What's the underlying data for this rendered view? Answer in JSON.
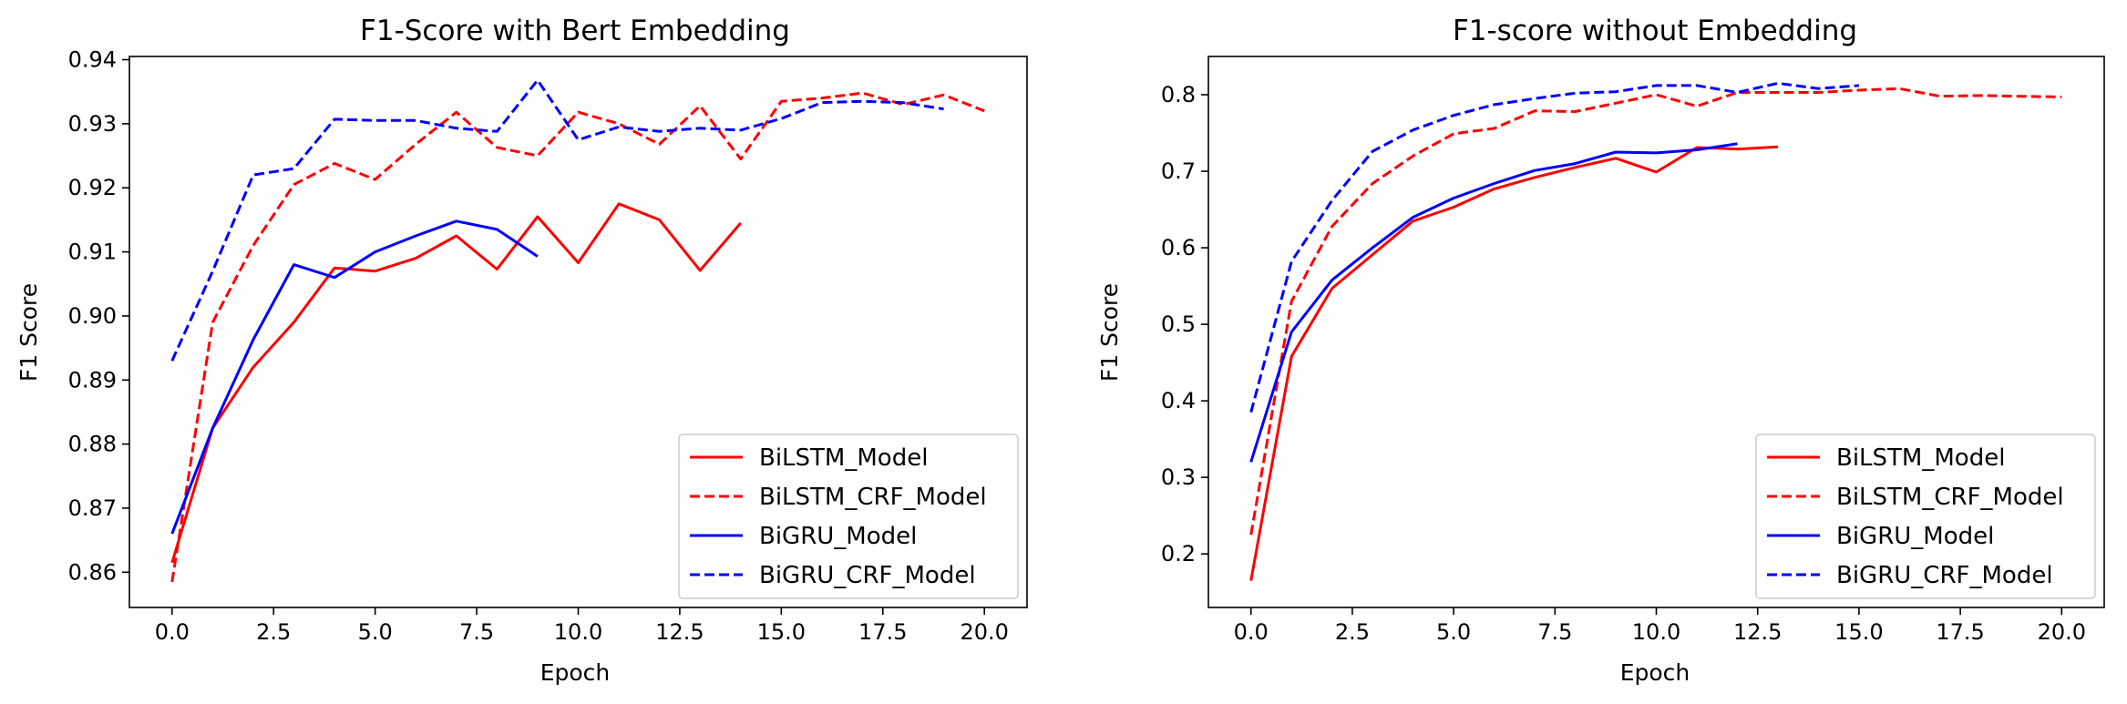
{
  "colors": {
    "red": "#ff0000",
    "blue": "#0000ff",
    "axis": "#000000",
    "legend_border": "#cccccc"
  },
  "chart_data": [
    {
      "type": "line",
      "title": "F1-Score with Bert Embedding",
      "xlabel": "Epoch",
      "ylabel": "F1 Score",
      "xlim": [
        -1.05,
        21.05
      ],
      "ylim": [
        0.8545,
        0.9405
      ],
      "xticks": [
        0,
        2.5,
        5,
        7.5,
        10,
        12.5,
        15,
        17.5,
        20
      ],
      "xtick_labels": [
        "0.0",
        "2.5",
        "5.0",
        "7.5",
        "10.0",
        "12.5",
        "15.0",
        "17.5",
        "20.0"
      ],
      "yticks": [
        0.86,
        0.87,
        0.88,
        0.89,
        0.9,
        0.91,
        0.92,
        0.93,
        0.94
      ],
      "ytick_labels": [
        "0.86",
        "0.87",
        "0.88",
        "0.89",
        "0.90",
        "0.91",
        "0.92",
        "0.93",
        "0.94"
      ],
      "grid": false,
      "legend_position": "lower-right",
      "series": [
        {
          "name": "BiLSTM_Model",
          "color": "#ff0000",
          "dash": "solid",
          "x": [
            0,
            1,
            2,
            3,
            4,
            5,
            6,
            7,
            8,
            9,
            10,
            11,
            12,
            13,
            14
          ],
          "y": [
            0.8615,
            0.8825,
            0.892,
            0.899,
            0.9075,
            0.907,
            0.909,
            0.9125,
            0.9073,
            0.9155,
            0.9083,
            0.9175,
            0.915,
            0.9071,
            0.9145
          ]
        },
        {
          "name": "BiLSTM_CRF_Model",
          "color": "#ff0000",
          "dash": "dashed",
          "x": [
            0,
            1,
            2,
            3,
            4,
            5,
            6,
            7,
            8,
            9,
            10,
            11,
            12,
            13,
            14,
            15,
            16,
            17,
            18,
            19,
            20
          ],
          "y": [
            0.8585,
            0.899,
            0.911,
            0.9205,
            0.9238,
            0.9213,
            0.9268,
            0.9318,
            0.9263,
            0.925,
            0.9318,
            0.93,
            0.9268,
            0.9328,
            0.9245,
            0.9335,
            0.934,
            0.9348,
            0.933,
            0.9345,
            0.932
          ]
        },
        {
          "name": "BiGRU_Model",
          "color": "#0000ff",
          "dash": "solid",
          "x": [
            0,
            1,
            2,
            3,
            4,
            5,
            6,
            7,
            8,
            9
          ],
          "y": [
            0.866,
            0.8825,
            0.8963,
            0.908,
            0.906,
            0.91,
            0.9125,
            0.9148,
            0.9135,
            0.9093
          ]
        },
        {
          "name": "BiGRU_CRF_Model",
          "color": "#0000ff",
          "dash": "dashed",
          "x": [
            0,
            1,
            2,
            3,
            4,
            5,
            6,
            7,
            8,
            9,
            10,
            11,
            12,
            13,
            14,
            15,
            16,
            17,
            18,
            19
          ],
          "y": [
            0.893,
            0.907,
            0.922,
            0.923,
            0.9307,
            0.9305,
            0.9305,
            0.9293,
            0.9288,
            0.9368,
            0.9275,
            0.9295,
            0.9288,
            0.9293,
            0.929,
            0.9308,
            0.9333,
            0.9335,
            0.9333,
            0.9323
          ]
        }
      ]
    },
    {
      "type": "line",
      "title": "F1-score without Embedding",
      "xlabel": "Epoch",
      "ylabel": "F1 Score",
      "xlim": [
        -1.05,
        21.05
      ],
      "ylim": [
        0.13,
        0.85
      ],
      "xticks": [
        0,
        2.5,
        5,
        7.5,
        10,
        12.5,
        15,
        17.5,
        20
      ],
      "xtick_labels": [
        "0.0",
        "2.5",
        "5.0",
        "7.5",
        "10.0",
        "12.5",
        "15.0",
        "17.5",
        "20.0"
      ],
      "yticks": [
        0.2,
        0.3,
        0.4,
        0.5,
        0.6,
        0.7,
        0.8
      ],
      "ytick_labels": [
        "0.2",
        "0.3",
        "0.4",
        "0.5",
        "0.6",
        "0.7",
        "0.8"
      ],
      "grid": false,
      "legend_position": "lower-right",
      "series": [
        {
          "name": "BiLSTM_Model",
          "color": "#ff0000",
          "dash": "solid",
          "x": [
            0,
            1,
            2,
            3,
            4,
            5,
            6,
            7,
            8,
            9,
            10,
            11,
            12,
            13
          ],
          "y": [
            0.165,
            0.458,
            0.547,
            0.591,
            0.635,
            0.653,
            0.677,
            0.692,
            0.705,
            0.717,
            0.699,
            0.731,
            0.729,
            0.732
          ]
        },
        {
          "name": "BiLSTM_CRF_Model",
          "color": "#ff0000",
          "dash": "dashed",
          "x": [
            0,
            1,
            2,
            3,
            4,
            5,
            6,
            7,
            8,
            9,
            10,
            11,
            12,
            13,
            14,
            15,
            16,
            17,
            18,
            19,
            20
          ],
          "y": [
            0.225,
            0.53,
            0.628,
            0.684,
            0.72,
            0.749,
            0.756,
            0.779,
            0.778,
            0.789,
            0.8,
            0.785,
            0.803,
            0.803,
            0.803,
            0.806,
            0.808,
            0.798,
            0.799,
            0.798,
            0.797
          ]
        },
        {
          "name": "BiGRU_Model",
          "color": "#0000ff",
          "dash": "solid",
          "x": [
            0,
            1,
            2,
            3,
            4,
            5,
            6,
            7,
            8,
            9,
            10,
            11,
            12
          ],
          "y": [
            0.32,
            0.49,
            0.558,
            0.6,
            0.64,
            0.665,
            0.684,
            0.701,
            0.71,
            0.725,
            0.724,
            0.728,
            0.736
          ]
        },
        {
          "name": "BiGRU_CRF_Model",
          "color": "#0000ff",
          "dash": "dashed",
          "x": [
            0,
            1,
            2,
            3,
            4,
            5,
            6,
            7,
            8,
            9,
            10,
            11,
            12,
            13,
            14,
            15
          ],
          "y": [
            0.385,
            0.582,
            0.662,
            0.726,
            0.754,
            0.773,
            0.787,
            0.795,
            0.802,
            0.804,
            0.812,
            0.812,
            0.803,
            0.815,
            0.808,
            0.812
          ]
        }
      ]
    }
  ]
}
